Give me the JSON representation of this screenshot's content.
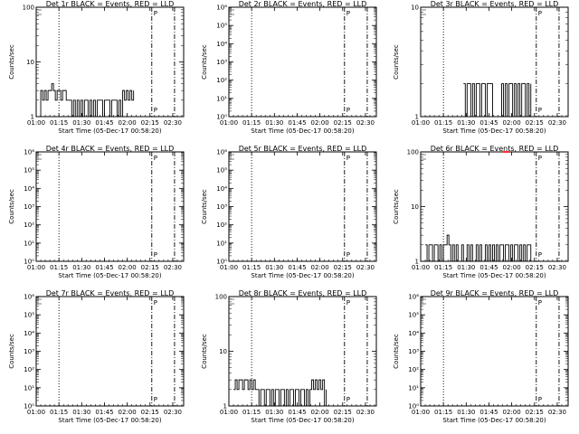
{
  "figure": {
    "x_ticks": [
      "01:00",
      "01:15",
      "01:30",
      "01:45",
      "02:00",
      "02:15",
      "02:30"
    ],
    "x_tick_hours": [
      1.0,
      1.25,
      1.5,
      1.75,
      2.0,
      2.25,
      2.5
    ],
    "xlabel": "Start Time (05-Dec-17 00:58:20)",
    "ylabel": "Counts/sec",
    "xlim_hours": [
      1.0,
      2.62
    ],
    "vlines": [
      {
        "x": 1.25,
        "style": "dotted"
      },
      {
        "x": 2.27,
        "style": "dashdot"
      },
      {
        "x": 2.52,
        "style": "dashdot"
      }
    ],
    "panel_marker": "P"
  },
  "chart_data": [
    {
      "type": "line",
      "title": "Det 1r BLACK = Events, RED = LLD",
      "yscale": "log",
      "ylim": [
        1,
        100
      ],
      "y_tick_labels": [
        "1",
        "10",
        "100"
      ],
      "series": [
        {
          "color": "#000000",
          "x": [
            1.03,
            1.05,
            1.07,
            1.09,
            1.11,
            1.13,
            1.15,
            1.17,
            1.19,
            1.21,
            1.23,
            1.25,
            1.27,
            1.29,
            1.31,
            1.33,
            1.35,
            1.37,
            1.39,
            1.41,
            1.43,
            1.45,
            1.47,
            1.49,
            1.51,
            1.53,
            1.55,
            1.57,
            1.59,
            1.61,
            1.63,
            1.65,
            1.67,
            1.69,
            1.71,
            1.73,
            1.75,
            1.77,
            1.79,
            1.81,
            1.83,
            1.85,
            1.87,
            1.89,
            1.91,
            1.93,
            1.95,
            1.97,
            1.99,
            2.01,
            2.03,
            2.05,
            2.07
          ],
          "y": [
            1,
            3,
            2,
            3,
            2,
            3,
            3,
            4,
            3,
            2,
            3,
            3,
            2,
            3,
            3,
            2,
            2,
            2,
            1,
            2,
            1,
            2,
            1,
            2,
            1,
            2,
            2,
            1,
            2,
            1,
            2,
            1,
            2,
            2,
            2,
            1,
            2,
            2,
            2,
            1,
            2,
            2,
            2,
            1,
            2,
            1,
            3,
            2,
            3,
            2,
            3,
            2,
            3
          ]
        }
      ]
    },
    {
      "type": "line",
      "title": "Det 2r BLACK = Events, RED = LLD",
      "yscale": "log",
      "ylim": [
        1,
        1000000
      ],
      "y_tick_labels": [
        "10^0",
        "10^1",
        "10^2",
        "10^3",
        "10^4",
        "10^5",
        "10^6"
      ],
      "series": []
    },
    {
      "type": "line",
      "title": "Det 3r BLACK = Events, RED = LLD",
      "yscale": "log",
      "ylim": [
        1,
        10
      ],
      "y_tick_labels": [
        "1",
        "10"
      ],
      "series": [
        {
          "color": "#000000",
          "x": [
            1.47,
            1.49,
            1.51,
            1.53,
            1.55,
            1.57,
            1.59,
            1.61,
            1.63,
            1.65,
            1.67,
            1.69,
            1.71,
            1.73,
            1.75,
            1.77,
            1.79,
            1.81,
            1.83,
            1.85,
            1.87,
            1.89,
            1.91,
            1.93,
            1.95,
            1.97,
            1.99,
            2.01,
            2.03,
            2.05,
            2.07,
            2.09,
            2.11,
            2.13,
            2.15,
            2.17,
            2.19,
            2.21
          ],
          "y": [
            2,
            1,
            2,
            2,
            1,
            2,
            1,
            2,
            2,
            1,
            2,
            2,
            1,
            2,
            2,
            2,
            1,
            1,
            1,
            1,
            1,
            2,
            1,
            2,
            1,
            2,
            2,
            1,
            2,
            1,
            2,
            1,
            2,
            2,
            1,
            2,
            1,
            2
          ]
        }
      ]
    },
    {
      "type": "line",
      "title": "Det 4r BLACK = Events, RED = LLD",
      "yscale": "log",
      "ylim": [
        1,
        1000000
      ],
      "y_tick_labels": [
        "10^0",
        "10^1",
        "10^2",
        "10^3",
        "10^4",
        "10^5",
        "10^6"
      ],
      "series": []
    },
    {
      "type": "line",
      "title": "Det 5r BLACK = Events, RED = LLD",
      "yscale": "log",
      "ylim": [
        1,
        1000000
      ],
      "y_tick_labels": [
        "10^0",
        "10^1",
        "10^2",
        "10^3",
        "10^4",
        "10^5",
        "10^6"
      ],
      "series": []
    },
    {
      "type": "line",
      "title": "Det 6r BLACK = Events, RED = LLD",
      "yscale": "log",
      "ylim": [
        1,
        100
      ],
      "y_tick_labels": [
        "1",
        "10",
        "100"
      ],
      "series": [
        {
          "color": "#000000",
          "x": [
            1.05,
            1.07,
            1.09,
            1.11,
            1.13,
            1.15,
            1.17,
            1.19,
            1.21,
            1.23,
            1.25,
            1.27,
            1.29,
            1.31,
            1.33,
            1.35,
            1.37,
            1.39,
            1.41,
            1.43,
            1.45,
            1.47,
            1.49,
            1.51,
            1.53,
            1.55,
            1.57,
            1.59,
            1.61,
            1.63,
            1.65,
            1.67,
            1.69,
            1.71,
            1.73,
            1.75,
            1.77,
            1.79,
            1.81,
            1.83,
            1.85,
            1.87,
            1.89,
            1.91,
            1.93,
            1.95,
            1.97,
            1.99,
            2.01,
            2.03,
            2.05,
            2.07,
            2.09,
            2.11,
            2.13,
            2.15,
            2.17,
            2.19,
            2.21
          ],
          "y": [
            2,
            1,
            2,
            2,
            1,
            2,
            2,
            1,
            2,
            1,
            2,
            2,
            3,
            2,
            1,
            2,
            1,
            2,
            1,
            1,
            2,
            1,
            1,
            2,
            1,
            2,
            1,
            1,
            2,
            1,
            2,
            1,
            1,
            2,
            1,
            2,
            1,
            2,
            1,
            2,
            1,
            2,
            2,
            1,
            2,
            2,
            1,
            2,
            1,
            2,
            2,
            1,
            2,
            1,
            2,
            1,
            2,
            2,
            1
          ]
        },
        {
          "color": "#ff0000",
          "x": [
            1.9,
            1.98
          ],
          "y": [
            100,
            100
          ]
        }
      ]
    },
    {
      "type": "line",
      "title": "Det 7r BLACK = Events, RED = LLD",
      "yscale": "log",
      "ylim": [
        1,
        1000000
      ],
      "y_tick_labels": [
        "10^0",
        "10^1",
        "10^2",
        "10^3",
        "10^4",
        "10^5",
        "10^6"
      ],
      "series": []
    },
    {
      "type": "line",
      "title": "Det 8r BLACK = Events, RED = LLD",
      "yscale": "log",
      "ylim": [
        1,
        100
      ],
      "y_tick_labels": [
        "1",
        "10",
        "100"
      ],
      "series": [
        {
          "color": "#000000",
          "x": [
            1.05,
            1.07,
            1.09,
            1.11,
            1.13,
            1.15,
            1.17,
            1.19,
            1.21,
            1.23,
            1.25,
            1.27,
            1.29,
            1.31,
            1.33,
            1.35,
            1.37,
            1.39,
            1.41,
            1.43,
            1.45,
            1.47,
            1.49,
            1.51,
            1.53,
            1.55,
            1.57,
            1.59,
            1.61,
            1.63,
            1.65,
            1.67,
            1.69,
            1.71,
            1.73,
            1.75,
            1.77,
            1.79,
            1.81,
            1.83,
            1.85,
            1.87,
            1.89,
            1.91,
            1.93,
            1.95,
            1.97,
            1.99,
            2.01,
            2.03,
            2.05,
            2.07
          ],
          "y": [
            2,
            3,
            2,
            3,
            3,
            2,
            3,
            3,
            2,
            3,
            2,
            3,
            2,
            2,
            1,
            2,
            2,
            1,
            2,
            2,
            1,
            2,
            1,
            2,
            2,
            1,
            2,
            2,
            1,
            2,
            1,
            2,
            2,
            1,
            2,
            2,
            1,
            2,
            2,
            1,
            2,
            1,
            2,
            3,
            2,
            3,
            2,
            3,
            2,
            3,
            1,
            2
          ]
        }
      ]
    },
    {
      "type": "line",
      "title": "Det 9r BLACK = Events, RED = LLD",
      "yscale": "log",
      "ylim": [
        1,
        1000000
      ],
      "y_tick_labels": [
        "10^0",
        "10^1",
        "10^2",
        "10^3",
        "10^4",
        "10^5",
        "10^6"
      ],
      "series": []
    }
  ]
}
